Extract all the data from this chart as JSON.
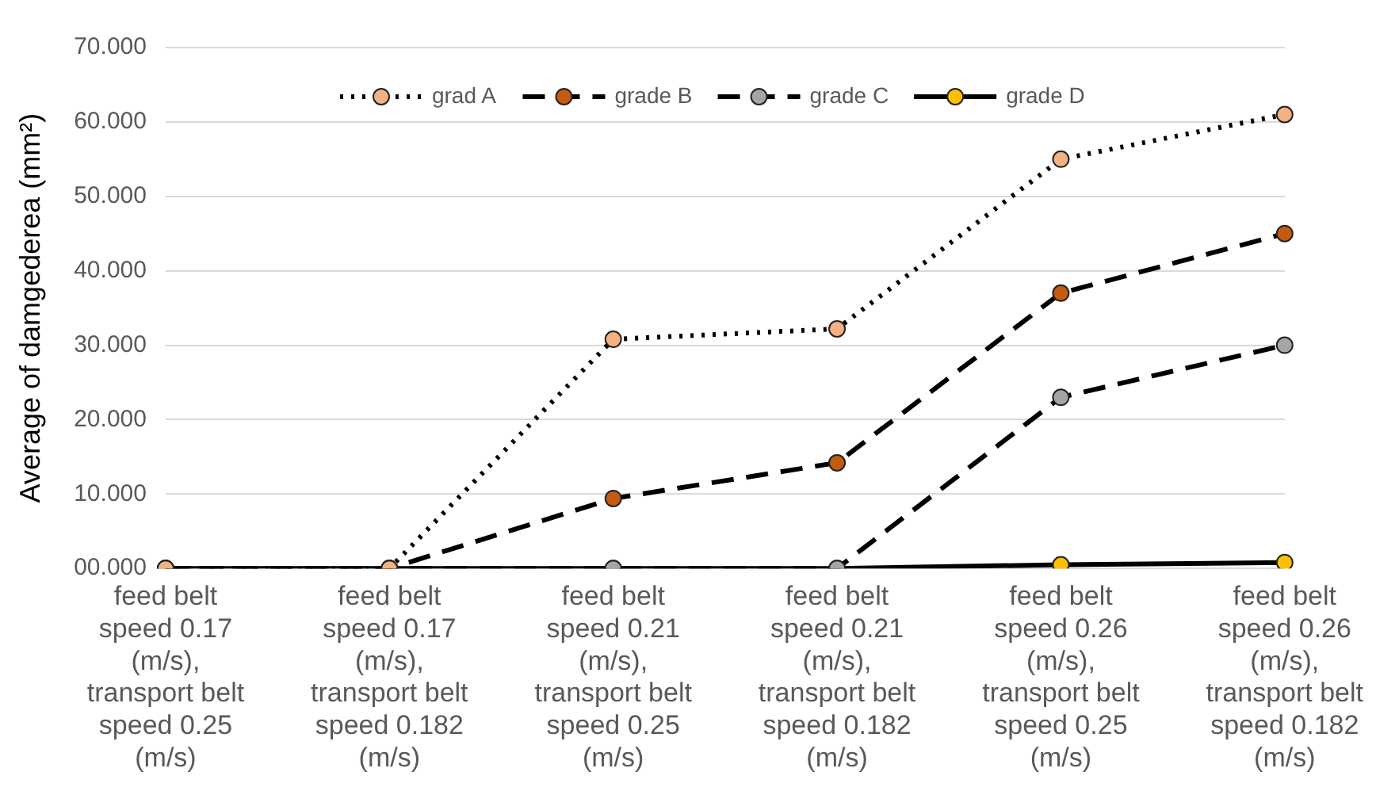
{
  "chart_data": {
    "type": "line",
    "ylabel": "Average of damgederea (mm²)",
    "categories": [
      "feed belt speed 0.17 (m/s), transport belt speed 0.25 (m/s)",
      "feed belt speed 0.17 (m/s), transport belt speed 0.182 (m/s)",
      "feed belt speed 0.21 (m/s), transport belt speed 0.25 (m/s)",
      "feed belt speed 0.21 (m/s), transport belt speed 0.182 (m/s)",
      "feed belt speed 0.26 (m/s), transport belt speed 0.25 (m/s)",
      "feed belt speed 0.26 (m/s), transport belt speed 0.182 (m/s)"
    ],
    "series": [
      {
        "name": "grad A",
        "color": "#f4b183",
        "line_style": "dotted",
        "values": [
          0,
          0,
          30.8,
          32.2,
          55,
          61
        ]
      },
      {
        "name": "grade B",
        "color": "#c55a11",
        "line_style": "dashed",
        "values": [
          0,
          0,
          9.4,
          14.2,
          37,
          45
        ]
      },
      {
        "name": "grade C",
        "color": "#a5a5a5",
        "line_style": "dashed",
        "values": [
          0,
          0,
          0,
          0,
          23,
          30
        ]
      },
      {
        "name": "grade D",
        "color": "#ffc000",
        "line_style": "solid",
        "values": [
          0,
          0,
          0,
          0,
          0.5,
          0.8
        ]
      }
    ],
    "ylim": [
      0,
      70
    ],
    "yticks": [
      {
        "value": 0,
        "label": "00.000"
      },
      {
        "value": 10,
        "label": "10.000"
      },
      {
        "value": 20,
        "label": "20.000"
      },
      {
        "value": 30,
        "label": "30.000"
      },
      {
        "value": 40,
        "label": "40.000"
      },
      {
        "value": 50,
        "label": "50.000"
      },
      {
        "value": 60,
        "label": "60.000"
      },
      {
        "value": 70,
        "label": "70.000"
      }
    ],
    "grid": "y",
    "legend": "top",
    "marker": "circle"
  }
}
